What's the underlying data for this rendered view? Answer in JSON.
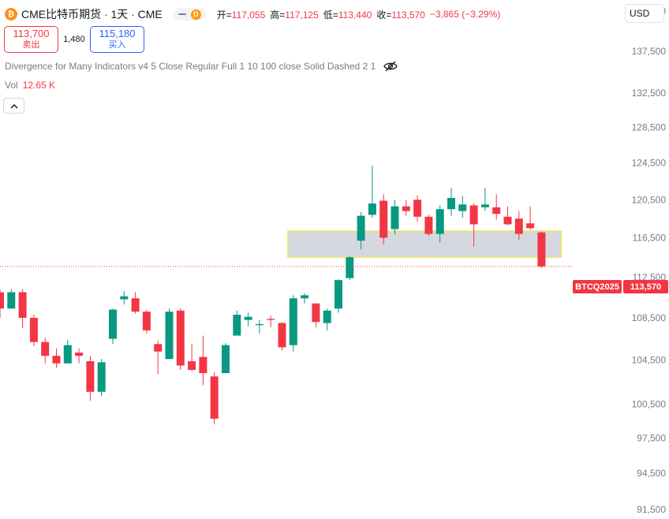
{
  "header": {
    "coin_icon_glyph": "₿",
    "symbol": "CME比特币期货",
    "interval": "1天",
    "exchange": "CME",
    "separator": "·",
    "flag_badge": "D",
    "ohlc": {
      "open_label": "开",
      "open": "117,055",
      "high_label": "高",
      "high": "117,125",
      "low_label": "低",
      "low": "113,440",
      "close_label": "收",
      "close": "113,570",
      "change": "−3,865 (−3.29%)"
    }
  },
  "trade": {
    "sell_price": "113,700",
    "sell_label": "卖出",
    "spread": "1,480",
    "buy_price": "115,180",
    "buy_label": "买入"
  },
  "indicator": {
    "name": "Divergence for Many Indicators v4 5 Close Regular Full 1 10 100 close Solid Dashed 2 1",
    "icon": "eye-crossed-icon"
  },
  "volume": {
    "label": "Vol",
    "value": "12.65 K"
  },
  "currency": "USD",
  "last_price_tag": {
    "symbol": "BTCQ2025",
    "price": "113,570"
  },
  "colors": {
    "up": "#089981",
    "down": "#f23645",
    "zone_fill": "#d1d4dc",
    "zone_border": "#f0e442",
    "axis_text": "#787b86"
  },
  "chart_data": {
    "type": "candlestick",
    "y_axis": {
      "scale": "log",
      "range": [
        91000,
        143500
      ],
      "ticks": [
        142500,
        137500,
        132500,
        128500,
        124500,
        120500,
        116500,
        112500,
        108500,
        104500,
        100500,
        97500,
        94500,
        91500
      ],
      "tick_labels": [
        "142,500",
        "137,500",
        "132,500",
        "128,500",
        "124,500",
        "120,500",
        "116,500",
        "112,500",
        "108,500",
        "104,500",
        "100,500",
        "97,500",
        "94,500",
        "91,500"
      ]
    },
    "candles": [
      [
        111000,
        111300,
        108500,
        109400
      ],
      [
        109400,
        111300,
        109400,
        111000
      ],
      [
        111000,
        111300,
        107500,
        108500
      ],
      [
        108500,
        108800,
        105800,
        106200
      ],
      [
        106200,
        106600,
        104200,
        104900
      ],
      [
        104900,
        105600,
        103800,
        104200
      ],
      [
        104200,
        106400,
        104200,
        105900
      ],
      [
        105200,
        105600,
        104200,
        104900
      ],
      [
        104400,
        104900,
        100800,
        101600
      ],
      [
        101600,
        104600,
        101200,
        104300
      ],
      [
        106500,
        109400,
        106000,
        109300
      ],
      [
        110300,
        111100,
        109800,
        110600
      ],
      [
        110400,
        111000,
        108900,
        109100
      ],
      [
        109100,
        109300,
        107000,
        107300
      ],
      [
        106000,
        106300,
        103200,
        105300
      ],
      [
        104600,
        109400,
        104600,
        109100
      ],
      [
        109200,
        109400,
        103600,
        104000
      ],
      [
        104400,
        106000,
        103500,
        103600
      ],
      [
        104800,
        106800,
        102200,
        103300
      ],
      [
        103000,
        103400,
        98700,
        99200
      ],
      [
        103300,
        106100,
        103300,
        105900
      ],
      [
        106800,
        109200,
        106800,
        108800
      ],
      [
        108300,
        109000,
        107700,
        108600
      ],
      [
        107800,
        108300,
        107000,
        107900
      ],
      [
        108400,
        108700,
        107600,
        108300
      ],
      [
        108000,
        108100,
        105400,
        105700
      ],
      [
        105900,
        110700,
        105300,
        110400
      ],
      [
        110400,
        110900,
        109900,
        110700
      ],
      [
        109900,
        109900,
        107600,
        108100
      ],
      [
        108000,
        109400,
        107300,
        109200
      ],
      [
        109400,
        112300,
        109000,
        112200
      ],
      [
        112400,
        114600,
        112200,
        114500
      ],
      [
        116200,
        119200,
        115300,
        118800
      ],
      [
        118900,
        124200,
        118600,
        120100
      ],
      [
        120400,
        121100,
        115800,
        116500
      ],
      [
        117400,
        120500,
        116800,
        119800
      ],
      [
        119800,
        120500,
        118800,
        119300
      ],
      [
        120500,
        121000,
        118200,
        118700
      ],
      [
        118700,
        118900,
        116700,
        116900
      ],
      [
        116900,
        119900,
        116000,
        119500
      ],
      [
        119500,
        121800,
        118800,
        120700
      ],
      [
        119300,
        120900,
        118600,
        120000
      ],
      [
        119900,
        120100,
        115600,
        117900
      ],
      [
        119700,
        121800,
        119300,
        120000
      ],
      [
        119700,
        121100,
        118400,
        119000
      ],
      [
        118700,
        119800,
        117800,
        117900
      ],
      [
        118500,
        119300,
        116300,
        116900
      ],
      [
        118000,
        119800,
        117300,
        117500
      ],
      [
        117055,
        117125,
        113440,
        113570
      ]
    ],
    "candle_order": "oldest to newest, each [open, high, low, close], one per trading day",
    "support_zone": {
      "from_candle": 26,
      "to_candle": 48,
      "low": 114500,
      "high": 117200
    },
    "last_price": 113570,
    "grid": false
  }
}
